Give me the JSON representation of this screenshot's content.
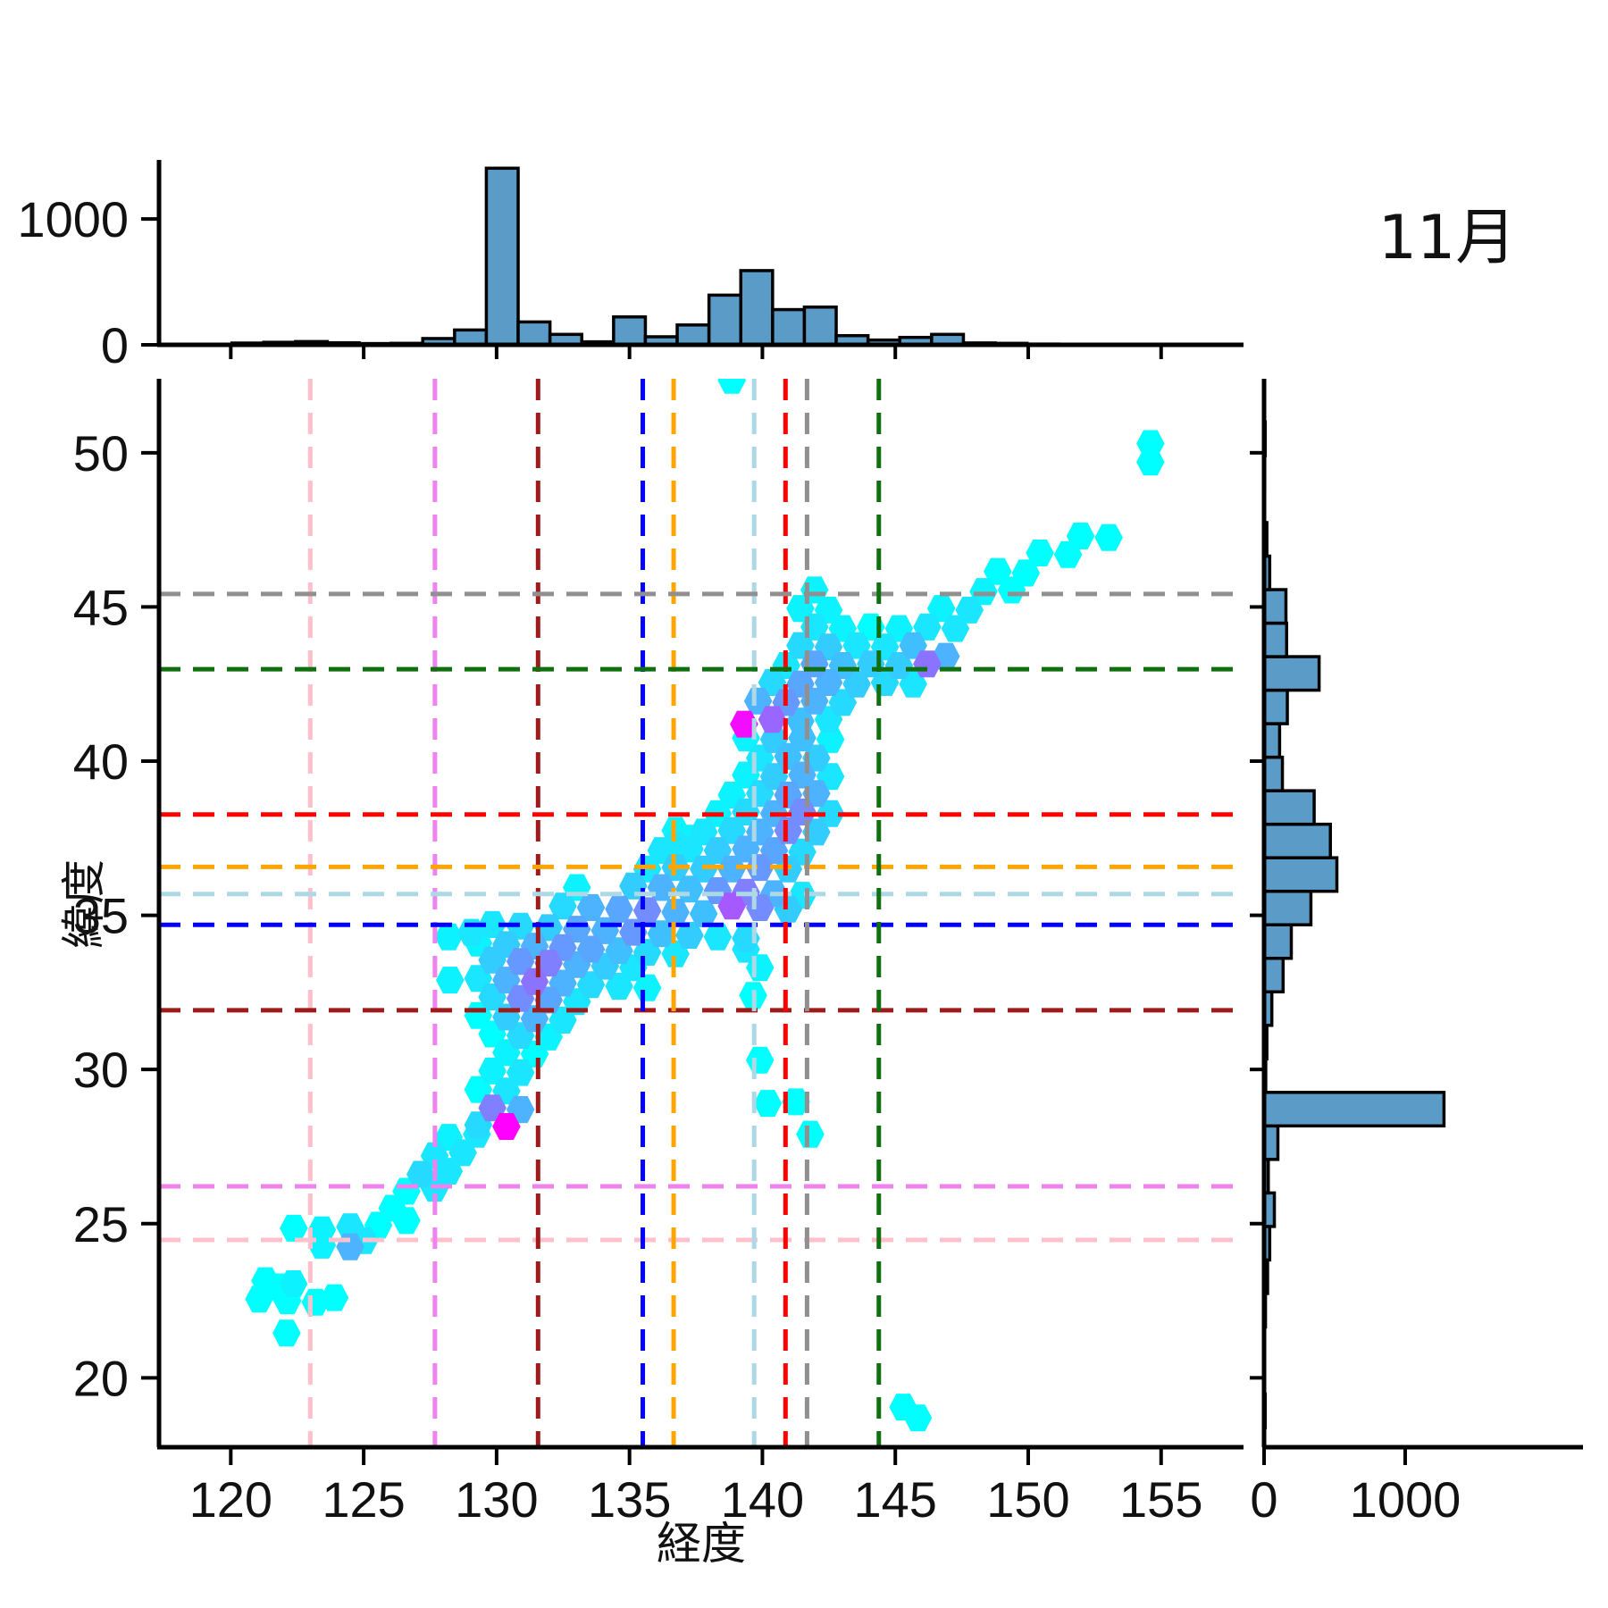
{
  "title": "11月",
  "axes": {
    "xlabel": "経度",
    "ylabel": "緯度",
    "x_ticks": [
      "120",
      "125",
      "130",
      "135",
      "140",
      "145",
      "150",
      "155"
    ],
    "x_tick_values": [
      120,
      125,
      130,
      135,
      140,
      145,
      150,
      155
    ],
    "y_ticks": [
      "20",
      "25",
      "30",
      "35",
      "40",
      "45",
      "50"
    ],
    "y_tick_values": [
      20,
      25,
      30,
      35,
      40,
      45,
      50
    ],
    "marginal_ticks": [
      "0",
      "1000"
    ],
    "marginal_tick_values": [
      0,
      1000
    ],
    "xlim": [
      117.3,
      158.1
    ],
    "ylim": [
      17.75,
      52.4
    ]
  },
  "style": {
    "bar_fill": "#5B9BC7",
    "bar_edge": "#000000",
    "spine_color": "#000000",
    "colormap": {
      "name": "cool",
      "low": "#00FFFF",
      "high": "#FF00FF"
    }
  },
  "reference_lines": [
    {
      "name": "pink-line",
      "color": "#FFC0CB",
      "lon": 122.99,
      "lat": 24.47
    },
    {
      "name": "violet-line",
      "color": "#EE82EE",
      "lon": 127.68,
      "lat": 26.21
    },
    {
      "name": "darkred-line",
      "color": "#9E1B1B",
      "lon": 131.56,
      "lat": 31.92
    },
    {
      "name": "blue-line",
      "color": "#0000FF",
      "lon": 135.5,
      "lat": 34.69
    },
    {
      "name": "orange-line",
      "color": "#FFA500",
      "lon": 136.66,
      "lat": 36.57
    },
    {
      "name": "lightblue-line",
      "color": "#ADD8E6",
      "lon": 139.69,
      "lat": 35.69
    },
    {
      "name": "red-line",
      "color": "#FF0000",
      "lon": 140.87,
      "lat": 38.27
    },
    {
      "name": "gray-line",
      "color": "#909090",
      "lon": 141.68,
      "lat": 45.42
    },
    {
      "name": "green-line",
      "color": "#107010",
      "lon": 144.38,
      "lat": 42.98
    }
  ],
  "chart_data": [
    {
      "id": "top-marginal-histogram",
      "type": "bar",
      "orientation": "vertical",
      "xlabel": "経度",
      "ylabel": "count",
      "ylim": [
        0,
        1470
      ],
      "bin_start": 117.65,
      "bin_width": 1.1965,
      "values": [
        2,
        4,
        14,
        20,
        26,
        16,
        10,
        12,
        50,
        118,
        1404,
        182,
        83,
        24,
        222,
        64,
        158,
        395,
        590,
        280,
        300,
        73,
        38,
        59,
        83,
        15,
        12,
        6,
        3,
        2,
        0,
        0,
        0,
        0
      ]
    },
    {
      "id": "right-marginal-histogram",
      "type": "bar",
      "orientation": "horizontal",
      "xlabel": "count",
      "ylabel": "緯度",
      "xlim": [
        0,
        2260
      ],
      "bin_start": 17.3,
      "bin_width": 1.087,
      "values": [
        0,
        8,
        0,
        3,
        10,
        25,
        40,
        73,
        30,
        98,
        1275,
        12,
        20,
        55,
        135,
        193,
        332,
        516,
        470,
        355,
        130,
        110,
        165,
        390,
        160,
        155,
        40,
        20,
        0,
        5,
        8,
        0
      ]
    },
    {
      "id": "joint-hexbin",
      "type": "hexbin",
      "xlabel": "経度",
      "ylabel": "緯度",
      "xlim": [
        117.3,
        158.1
      ],
      "ylim": [
        17.75,
        52.4
      ],
      "colormap": "cool (cyan=low, magenta=high)",
      "hex_width_deg": 1.06,
      "hex_height_deg": 0.87,
      "points": [
        [
          122.1,
          21.45,
          0
        ],
        [
          121.07,
          22.55,
          0
        ],
        [
          122.13,
          22.5,
          0
        ],
        [
          123.19,
          22.45,
          0
        ],
        [
          123.9,
          22.6,
          0
        ],
        [
          121.3,
          23.15,
          0
        ],
        [
          122.36,
          23.05,
          0.05
        ],
        [
          121.83,
          22.95,
          0
        ],
        [
          123.43,
          24.3,
          0.05
        ],
        [
          124.49,
          24.25,
          0.3
        ],
        [
          125.02,
          24.45,
          0.1
        ],
        [
          122.37,
          24.85,
          0
        ],
        [
          123.43,
          24.8,
          0.05
        ],
        [
          124.49,
          24.9,
          0.1
        ],
        [
          125.55,
          24.95,
          0
        ],
        [
          126.61,
          25.1,
          0
        ],
        [
          126.08,
          25.5,
          0
        ],
        [
          126.61,
          26.05,
          0
        ],
        [
          127.67,
          26.15,
          0.1
        ],
        [
          127.14,
          26.6,
          0.15
        ],
        [
          128.2,
          26.7,
          0.1
        ],
        [
          127.67,
          27.2,
          0.1
        ],
        [
          128.73,
          27.3,
          0.1
        ],
        [
          128.2,
          27.8,
          0.05
        ],
        [
          129.26,
          27.9,
          0.1
        ],
        [
          129.31,
          28.2,
          0.15
        ],
        [
          130.37,
          28.15,
          1.0
        ],
        [
          129.84,
          28.75,
          0.5
        ],
        [
          130.9,
          28.7,
          0.3
        ],
        [
          129.31,
          29.35,
          0
        ],
        [
          130.37,
          29.3,
          0.1
        ],
        [
          129.84,
          29.95,
          0.05
        ],
        [
          130.9,
          29.9,
          0.1
        ],
        [
          130.37,
          30.55,
          0.05
        ],
        [
          131.43,
          30.5,
          0
        ],
        [
          129.84,
          31.15,
          0
        ],
        [
          130.9,
          31.1,
          0.15
        ],
        [
          131.96,
          31.05,
          0.05
        ],
        [
          129.31,
          31.75,
          0
        ],
        [
          130.37,
          31.7,
          0.2
        ],
        [
          131.43,
          31.65,
          0.3
        ],
        [
          132.49,
          31.6,
          0.1
        ],
        [
          129.84,
          32.35,
          0.15
        ],
        [
          130.9,
          32.3,
          0.45
        ],
        [
          131.96,
          32.25,
          0.35
        ],
        [
          133.02,
          32.2,
          0.1
        ],
        [
          128.25,
          32.9,
          0.05
        ],
        [
          129.31,
          32.95,
          0.1
        ],
        [
          130.37,
          32.9,
          0.3
        ],
        [
          131.43,
          32.85,
          0.55
        ],
        [
          132.49,
          32.8,
          0.3
        ],
        [
          133.55,
          32.75,
          0.15
        ],
        [
          134.61,
          32.7,
          0.1
        ],
        [
          135.67,
          32.65,
          0.05
        ],
        [
          129.84,
          33.55,
          0.2
        ],
        [
          130.9,
          33.5,
          0.4
        ],
        [
          131.96,
          33.45,
          0.5
        ],
        [
          133.02,
          33.4,
          0.3
        ],
        [
          134.08,
          33.35,
          0.2
        ],
        [
          135.14,
          33.3,
          0.1
        ],
        [
          129.31,
          34.1,
          0.05
        ],
        [
          130.37,
          34.05,
          0.2
        ],
        [
          131.43,
          34.0,
          0.3
        ],
        [
          132.49,
          33.95,
          0.4
        ],
        [
          133.55,
          33.9,
          0.35
        ],
        [
          134.61,
          33.85,
          0.25
        ],
        [
          135.67,
          33.8,
          0.15
        ],
        [
          136.73,
          33.75,
          0.1
        ],
        [
          139.38,
          33.9,
          0.1
        ],
        [
          129.05,
          34.45,
          0.1
        ],
        [
          128.2,
          34.3,
          0.05
        ],
        [
          129.84,
          34.7,
          0.1
        ],
        [
          130.9,
          34.65,
          0.15
        ],
        [
          131.96,
          34.6,
          0.2
        ],
        [
          133.02,
          34.55,
          0.35
        ],
        [
          134.08,
          34.5,
          0.3
        ],
        [
          135.14,
          34.45,
          0.4
        ],
        [
          136.2,
          34.4,
          0.25
        ],
        [
          137.26,
          34.35,
          0.2
        ],
        [
          138.32,
          34.3,
          0.1
        ],
        [
          139.38,
          34.25,
          0.15
        ],
        [
          132.49,
          35.3,
          0.15
        ],
        [
          133.55,
          35.25,
          0.3
        ],
        [
          134.61,
          35.2,
          0.35
        ],
        [
          135.67,
          35.15,
          0.45
        ],
        [
          136.73,
          35.1,
          0.3
        ],
        [
          137.79,
          35.05,
          0.25
        ],
        [
          138.85,
          35.3,
          0.65
        ],
        [
          139.91,
          35.25,
          0.45
        ],
        [
          140.97,
          35.2,
          0.2
        ],
        [
          133.02,
          35.9,
          0.05
        ],
        [
          135.14,
          35.95,
          0.2
        ],
        [
          136.2,
          35.9,
          0.3
        ],
        [
          137.26,
          35.85,
          0.25
        ],
        [
          138.32,
          35.8,
          0.4
        ],
        [
          139.38,
          35.75,
          0.5
        ],
        [
          140.44,
          35.7,
          0.3
        ],
        [
          141.5,
          35.65,
          0.1
        ],
        [
          135.67,
          36.5,
          0.1
        ],
        [
          136.73,
          36.55,
          0.2
        ],
        [
          137.79,
          36.5,
          0.2
        ],
        [
          138.85,
          36.5,
          0.3
        ],
        [
          139.91,
          36.55,
          0.4
        ],
        [
          140.97,
          36.5,
          0.2
        ],
        [
          136.2,
          37.1,
          0.1
        ],
        [
          137.26,
          37.15,
          0.1
        ],
        [
          138.32,
          37.1,
          0.2
        ],
        [
          139.38,
          37.15,
          0.3
        ],
        [
          140.44,
          37.1,
          0.35
        ],
        [
          141.5,
          37.05,
          0.15
        ],
        [
          136.73,
          37.75,
          0.05
        ],
        [
          137.79,
          37.7,
          0.1
        ],
        [
          138.85,
          37.75,
          0.15
        ],
        [
          139.91,
          37.7,
          0.3
        ],
        [
          140.97,
          37.75,
          0.45
        ],
        [
          142.03,
          37.7,
          0.2
        ],
        [
          138.32,
          38.3,
          0.05
        ],
        [
          139.38,
          38.35,
          0.15
        ],
        [
          140.44,
          38.3,
          0.3
        ],
        [
          141.5,
          38.35,
          0.45
        ],
        [
          142.56,
          38.3,
          0.15
        ],
        [
          138.85,
          38.9,
          0.05
        ],
        [
          139.91,
          38.95,
          0.15
        ],
        [
          140.97,
          38.9,
          0.35
        ],
        [
          142.03,
          38.95,
          0.3
        ],
        [
          139.38,
          39.55,
          0.05
        ],
        [
          140.44,
          39.5,
          0.2
        ],
        [
          141.5,
          39.55,
          0.3
        ],
        [
          142.56,
          39.5,
          0.1
        ],
        [
          139.91,
          40.1,
          0.1
        ],
        [
          140.97,
          40.15,
          0.25
        ],
        [
          142.03,
          40.1,
          0.2
        ],
        [
          139.38,
          40.75,
          0.05
        ],
        [
          140.44,
          40.7,
          0.2
        ],
        [
          141.5,
          40.75,
          0.25
        ],
        [
          142.56,
          40.7,
          0.05
        ],
        [
          139.31,
          41.2,
          0.95
        ],
        [
          140.37,
          41.35,
          0.6
        ],
        [
          141.43,
          41.3,
          0.25
        ],
        [
          142.49,
          41.35,
          0.1
        ],
        [
          139.84,
          41.95,
          0.3
        ],
        [
          140.9,
          41.9,
          0.4
        ],
        [
          141.96,
          41.95,
          0.3
        ],
        [
          143.02,
          41.9,
          0.15
        ],
        [
          140.37,
          42.55,
          0.15
        ],
        [
          141.43,
          42.5,
          0.35
        ],
        [
          142.49,
          42.55,
          0.3
        ],
        [
          143.55,
          42.5,
          0.2
        ],
        [
          144.61,
          42.55,
          0.15
        ],
        [
          145.67,
          42.5,
          0.1
        ],
        [
          140.9,
          43.1,
          0.1
        ],
        [
          141.96,
          43.15,
          0.35
        ],
        [
          143.02,
          43.1,
          0.25
        ],
        [
          144.08,
          43.15,
          0.2
        ],
        [
          145.14,
          43.1,
          0.2
        ],
        [
          146.2,
          43.15,
          0.55
        ],
        [
          146.9,
          43.4,
          0.3
        ],
        [
          141.43,
          43.75,
          0.15
        ],
        [
          142.49,
          43.7,
          0.2
        ],
        [
          143.55,
          43.75,
          0.1
        ],
        [
          144.61,
          43.7,
          0.1
        ],
        [
          145.67,
          43.75,
          0.25
        ],
        [
          141.96,
          44.35,
          0.1
        ],
        [
          143.02,
          44.3,
          0.05
        ],
        [
          144.08,
          44.35,
          0
        ],
        [
          145.14,
          44.3,
          0.05
        ],
        [
          146.2,
          44.35,
          0.1
        ],
        [
          147.26,
          44.3,
          0.1
        ],
        [
          141.43,
          44.95,
          0.05
        ],
        [
          142.49,
          44.9,
          0.05
        ],
        [
          146.73,
          44.95,
          0.05
        ],
        [
          147.79,
          44.9,
          0.1
        ],
        [
          141.96,
          45.55,
          0.05
        ],
        [
          148.32,
          45.5,
          0.05
        ],
        [
          149.38,
          45.55,
          0
        ],
        [
          148.85,
          46.15,
          0
        ],
        [
          149.91,
          46.1,
          0
        ],
        [
          150.44,
          46.75,
          0
        ],
        [
          151.5,
          46.7,
          0
        ],
        [
          151.97,
          47.3,
          0
        ],
        [
          153.03,
          47.25,
          0
        ],
        [
          154.6,
          49.7,
          0
        ],
        [
          154.6,
          50.3,
          0
        ],
        [
          138.85,
          52.35,
          0
        ],
        [
          139.91,
          33.3,
          0.05
        ],
        [
          139.65,
          32.4,
          0
        ],
        [
          139.91,
          30.3,
          0
        ],
        [
          140.2,
          28.9,
          0
        ],
        [
          141.26,
          28.95,
          0
        ],
        [
          141.8,
          27.9,
          0
        ],
        [
          145.3,
          19.05,
          0
        ],
        [
          145.85,
          18.7,
          0
        ],
        [
          136.73,
          37.3,
          0.1
        ],
        [
          137.26,
          37.5,
          0.05
        ]
      ]
    }
  ]
}
